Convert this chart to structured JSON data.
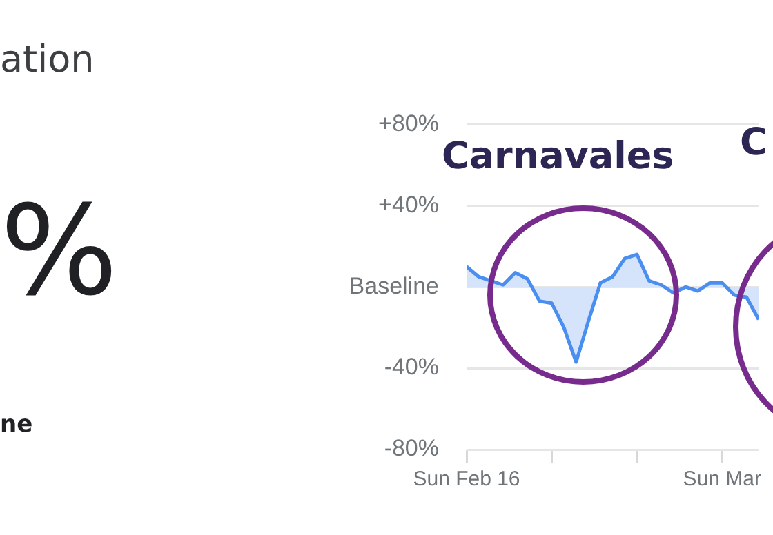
{
  "chart_data": {
    "type": "area",
    "x": [
      "--02-16",
      "--02-17",
      "--02-18",
      "--02-19",
      "--02-20",
      "--02-21",
      "--02-22",
      "--02-23",
      "--02-24",
      "--02-25",
      "--02-26",
      "--02-27",
      "--02-28",
      "--02-29",
      "--03-01",
      "--03-02",
      "--03-03",
      "--03-04",
      "--03-05",
      "--03-06",
      "--03-07",
      "--03-08",
      "--03-09",
      "--03-10",
      "--03-11"
    ],
    "series": [
      {
        "color": "#4a8ef0",
        "values": [
          10,
          5,
          3,
          1,
          7,
          4,
          -7,
          -8,
          -20,
          -37,
          -17,
          2,
          5,
          14,
          16,
          3,
          1,
          -3,
          0,
          -2,
          2,
          2,
          -4,
          -5,
          -16
        ]
      }
    ],
    "xlim": [
      "--02-16",
      "--03-11"
    ],
    "xticks": [
      {
        "value": "--02-16",
        "label": "Sun Feb 16"
      },
      {
        "value": "--02-23",
        "label": null
      },
      {
        "value": "--03-01",
        "label": null
      },
      {
        "value": "--03-08",
        "label": "Sun Mar"
      }
    ],
    "ylim": [
      -80,
      80
    ],
    "yticks": [
      {
        "value": -80,
        "label": "-80%"
      },
      {
        "value": -40,
        "label": "-40%"
      },
      {
        "value": 0,
        "label": "Baseline"
      },
      {
        "value": 40,
        "label": "+40%"
      },
      {
        "value": 80,
        "label": "+80%"
      }
    ],
    "grid": "y",
    "annotations": [
      "ation",
      "%",
      "ne",
      "Carnavales",
      "C"
    ]
  }
}
